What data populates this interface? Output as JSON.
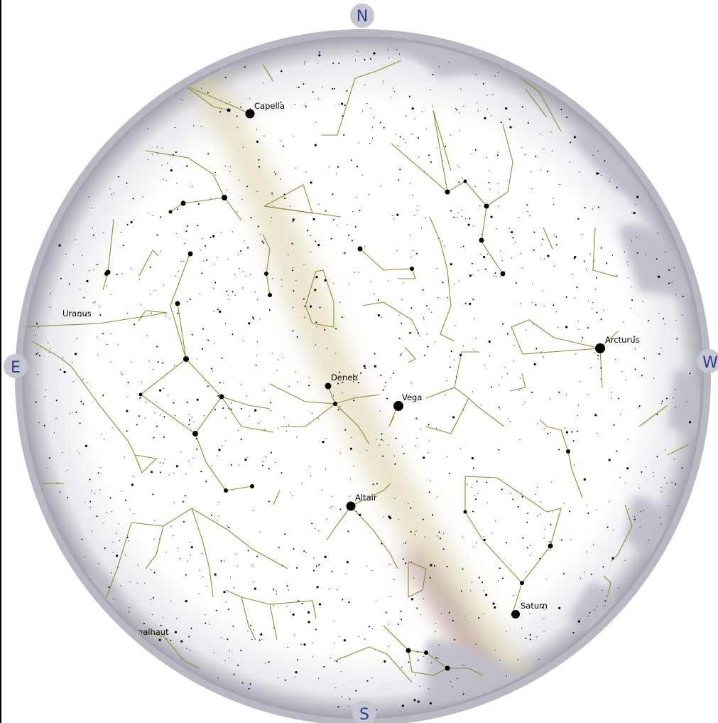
{
  "map": {
    "type": "all-sky star chart",
    "colors": {
      "sky": "#ffffff",
      "dome_edge": "#9a9aa6",
      "compass_text": "#2b3f8c",
      "compass_badge": "#c7c7d1",
      "constellation_line": "#8f8d2c",
      "milky_way": "#d6cfa6",
      "star": "#000000"
    }
  },
  "compass": {
    "north": "N",
    "south": "S",
    "east": "E",
    "west": "W"
  },
  "labels": {
    "capella": "Capella",
    "uranus": "Uranus",
    "arcturus": "Arcturus",
    "deneb": "Deneb",
    "vega": "Vega",
    "altair": "Altair",
    "saturn": "Saturn",
    "fomalhaut": "malhaut"
  }
}
